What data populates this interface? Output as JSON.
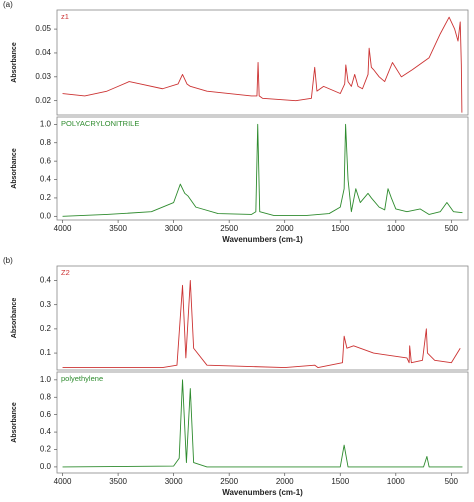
{
  "chart_data": [
    {
      "type": "line",
      "panel_label": "(a)",
      "y_label": "Absorbance",
      "xlim": [
        4050,
        350
      ],
      "ylim": [
        0.014,
        0.058
      ],
      "yticks": [
        0.02,
        0.03,
        0.04,
        0.05
      ],
      "x": [
        4000,
        3800,
        3600,
        3500,
        3400,
        3300,
        3100,
        2960,
        2920,
        2880,
        2850,
        2700,
        2500,
        2300,
        2250,
        2240,
        2230,
        2200,
        1900,
        1760,
        1730,
        1710,
        1650,
        1600,
        1500,
        1460,
        1450,
        1430,
        1400,
        1370,
        1340,
        1300,
        1250,
        1240,
        1220,
        1200,
        1150,
        1100,
        1030,
        950,
        850,
        700,
        600,
        520,
        470,
        440,
        420,
        410,
        405
      ],
      "series": [
        {
          "name": "z1",
          "color": "#cc3333",
          "values": [
            0.023,
            0.022,
            0.024,
            0.026,
            0.028,
            0.027,
            0.025,
            0.027,
            0.031,
            0.027,
            0.026,
            0.024,
            0.023,
            0.022,
            0.022,
            0.036,
            0.022,
            0.021,
            0.02,
            0.021,
            0.034,
            0.024,
            0.026,
            0.025,
            0.023,
            0.027,
            0.035,
            0.028,
            0.026,
            0.031,
            0.026,
            0.025,
            0.031,
            0.042,
            0.034,
            0.033,
            0.03,
            0.028,
            0.036,
            0.03,
            0.033,
            0.038,
            0.048,
            0.055,
            0.05,
            0.045,
            0.053,
            0.035,
            0.015
          ]
        }
      ]
    },
    {
      "type": "line",
      "x_label": "Wavenumbers (cm-1)",
      "y_label": "Absorbance",
      "xlim": [
        4050,
        350
      ],
      "ylim": [
        -0.04,
        1.08
      ],
      "yticks": [
        {
          "value": 0,
          "label": "0.0"
        },
        0.2,
        0.4,
        0.6,
        0.8,
        {
          "value": 1,
          "label": "1.0"
        }
      ],
      "xticks": [
        4000,
        3500,
        3000,
        2500,
        2000,
        1500,
        1000,
        500
      ],
      "x": [
        4000,
        3600,
        3200,
        3000,
        2940,
        2900,
        2870,
        2800,
        2600,
        2300,
        2260,
        2243,
        2225,
        2100,
        1800,
        1600,
        1500,
        1465,
        1452,
        1430,
        1400,
        1360,
        1320,
        1250,
        1220,
        1150,
        1100,
        1070,
        1040,
        1000,
        900,
        780,
        700,
        600,
        540,
        480,
        400
      ],
      "series": [
        {
          "name": "POLYACRYLONITRILE",
          "color": "#2e8b2e",
          "values": [
            0.0,
            0.02,
            0.05,
            0.15,
            0.35,
            0.25,
            0.22,
            0.1,
            0.03,
            0.02,
            0.05,
            1.0,
            0.05,
            0.01,
            0.01,
            0.03,
            0.1,
            0.3,
            1.0,
            0.4,
            0.05,
            0.3,
            0.15,
            0.25,
            0.2,
            0.1,
            0.07,
            0.3,
            0.2,
            0.08,
            0.05,
            0.08,
            0.02,
            0.05,
            0.15,
            0.05,
            0.04
          ]
        }
      ]
    },
    {
      "type": "line",
      "panel_label": "(b)",
      "y_label": "Absorbance",
      "xlim": [
        4050,
        350
      ],
      "ylim": [
        0.03,
        0.46
      ],
      "yticks": [
        0.1,
        0.2,
        0.3,
        0.4
      ],
      "x": [
        4000,
        3100,
        2970,
        2920,
        2890,
        2850,
        2820,
        2700,
        2000,
        1730,
        1700,
        1480,
        1465,
        1440,
        1380,
        1200,
        900,
        880,
        875,
        860,
        760,
        725,
        715,
        650,
        500,
        420
      ],
      "series": [
        {
          "name": "Z2",
          "color": "#cc3333",
          "values": [
            0.04,
            0.04,
            0.05,
            0.38,
            0.08,
            0.4,
            0.12,
            0.05,
            0.04,
            0.05,
            0.04,
            0.06,
            0.17,
            0.12,
            0.13,
            0.1,
            0.08,
            0.06,
            0.13,
            0.06,
            0.07,
            0.2,
            0.1,
            0.07,
            0.06,
            0.12
          ]
        }
      ]
    },
    {
      "type": "line",
      "x_label": "Wavenumbers (cm-1)",
      "y_label": "Absorbance",
      "xlim": [
        4050,
        350
      ],
      "ylim": [
        -0.07,
        1.09
      ],
      "yticks": [
        {
          "value": 0,
          "label": "0.0"
        },
        0.2,
        0.4,
        0.6,
        0.8,
        {
          "value": 1,
          "label": "1.0"
        }
      ],
      "xticks": [
        4000,
        3500,
        3000,
        2500,
        2000,
        1500,
        1000,
        500
      ],
      "x": [
        4000,
        3000,
        2950,
        2920,
        2885,
        2850,
        2820,
        2700,
        1500,
        1465,
        1430,
        750,
        720,
        700,
        400
      ],
      "series": [
        {
          "name": "polyethylene",
          "color": "#2e8b2e",
          "values": [
            0.0,
            0.01,
            0.1,
            1.0,
            0.05,
            0.9,
            0.05,
            0.0,
            0.0,
            0.25,
            0.0,
            0.0,
            0.12,
            0.0,
            0.0
          ]
        }
      ]
    }
  ]
}
